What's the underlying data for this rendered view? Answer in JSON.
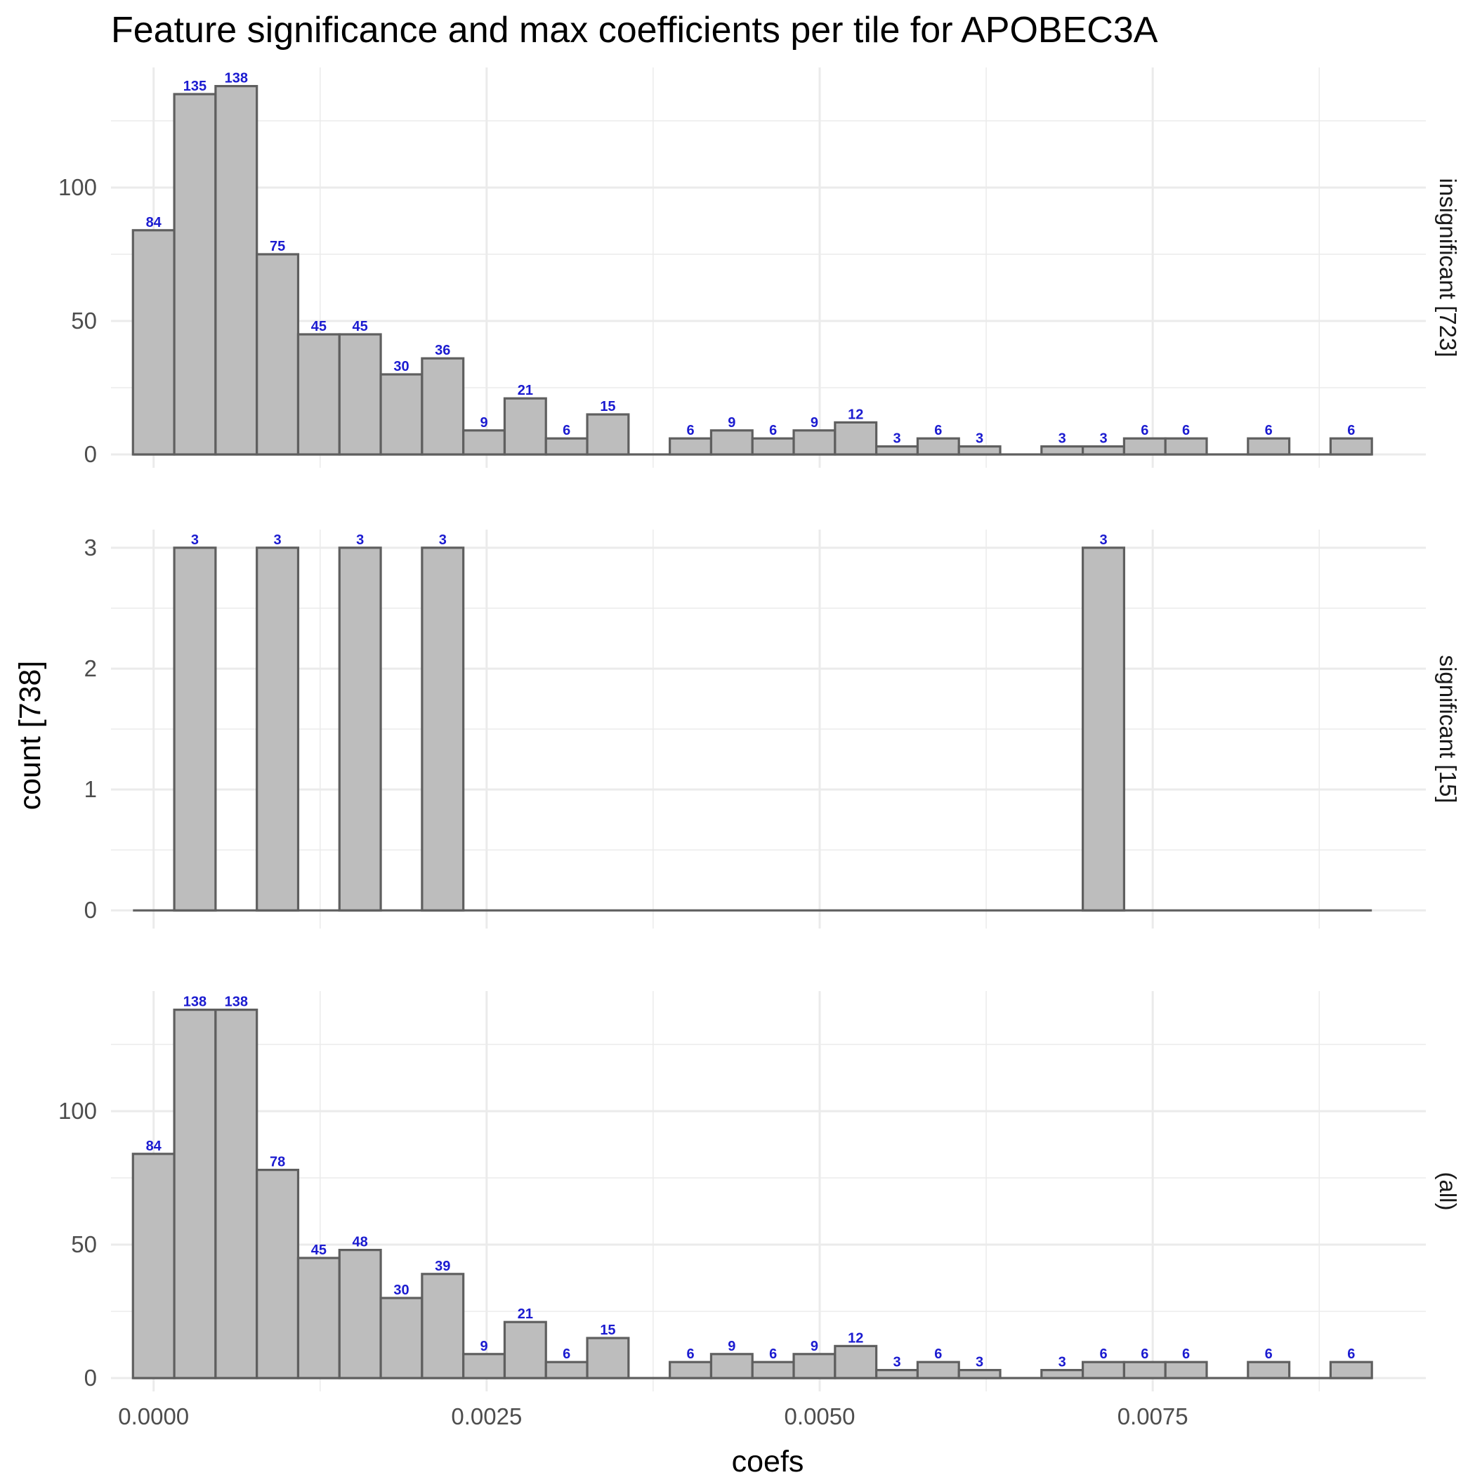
{
  "chart_data": {
    "type": "bar",
    "title": "Feature significance and max coefficients per tile for APOBEC3A",
    "xlabel": "coefs",
    "ylabel": "count [738]",
    "xlim": [
      -0.00032,
      0.00955
    ],
    "x_ticks": [
      0,
      0.0025,
      0.005,
      0.0075
    ],
    "x_tick_labels": [
      "0.0000",
      "0.0025",
      "0.0050",
      "0.0075"
    ],
    "bin_width": 0.00031,
    "bin_start": -0.000155,
    "bin_count": 30,
    "grid": true,
    "legend": "none",
    "bar_fill": "#bdbdbd",
    "bar_stroke": "#5f5f5f",
    "label_color": "#1b1bd0",
    "panels": [
      {
        "strip": "insignificant [723]",
        "ylim": [
          -5,
          145
        ],
        "y_ticks": [
          0,
          50,
          100
        ],
        "y_tick_labels": [
          "0",
          "50",
          "100"
        ],
        "counts": [
          84,
          135,
          138,
          75,
          45,
          45,
          30,
          36,
          9,
          21,
          6,
          15,
          0,
          6,
          9,
          6,
          9,
          12,
          3,
          6,
          3,
          0,
          3,
          3,
          6,
          6,
          0,
          6,
          0,
          6
        ]
      },
      {
        "strip": "significant [15]",
        "ylim": [
          -0.15,
          3.15
        ],
        "y_ticks": [
          0,
          1,
          2,
          3
        ],
        "y_tick_labels": [
          "0",
          "1",
          "2",
          "3"
        ],
        "counts": [
          0,
          3,
          0,
          3,
          0,
          3,
          0,
          3,
          0,
          0,
          0,
          0,
          0,
          0,
          0,
          0,
          0,
          0,
          0,
          0,
          0,
          0,
          0,
          3,
          0,
          0,
          0,
          0,
          0,
          0
        ]
      },
      {
        "strip": "(all)",
        "ylim": [
          -5,
          145
        ],
        "y_ticks": [
          0,
          50,
          100
        ],
        "y_tick_labels": [
          "0",
          "50",
          "100"
        ],
        "counts": [
          84,
          138,
          138,
          78,
          45,
          48,
          30,
          39,
          9,
          21,
          6,
          15,
          0,
          6,
          9,
          6,
          9,
          12,
          3,
          6,
          3,
          0,
          3,
          6,
          6,
          6,
          0,
          6,
          0,
          6
        ]
      }
    ]
  }
}
